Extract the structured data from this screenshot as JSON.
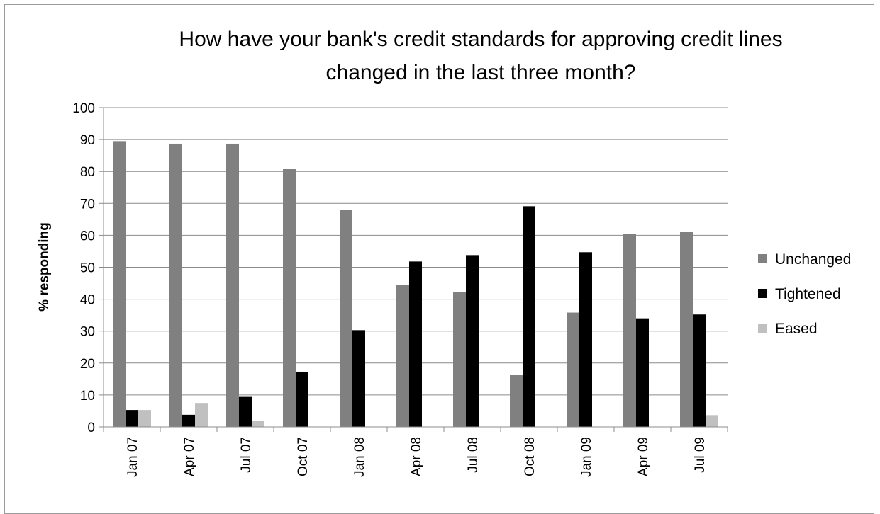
{
  "chart_data": {
    "type": "bar",
    "title_lines": [
      "How have your bank's credit standards for approving credit lines",
      "changed in the last three month?"
    ],
    "xlabel": "",
    "ylabel": "% responding",
    "ylim": [
      0,
      100
    ],
    "yticks": [
      0,
      10,
      20,
      30,
      40,
      50,
      60,
      70,
      80,
      90,
      100
    ],
    "grid": true,
    "legend_position": "right",
    "categories": [
      "Jan 07",
      "Apr 07",
      "Jul 07",
      "Oct 07",
      "Jan 08",
      "Apr 08",
      "Jul 08",
      "Oct 08",
      "Jan 09",
      "Apr 09",
      "Jul 09"
    ],
    "series": [
      {
        "name": "Unchanged",
        "color": "#808080",
        "values": [
          89.5,
          88.7,
          88.7,
          80.8,
          67.9,
          44.5,
          42.2,
          16.4,
          35.8,
          60.4,
          61.1
        ]
      },
      {
        "name": "Tightened",
        "color": "#000000",
        "values": [
          5.3,
          3.8,
          9.4,
          17.3,
          30.3,
          51.8,
          53.8,
          69.1,
          54.7,
          34.0,
          35.2
        ]
      },
      {
        "name": "Eased",
        "color": "#c0c0c0",
        "values": [
          5.3,
          7.5,
          1.9,
          0,
          0,
          0,
          0,
          0,
          0,
          0,
          3.7
        ]
      }
    ]
  }
}
